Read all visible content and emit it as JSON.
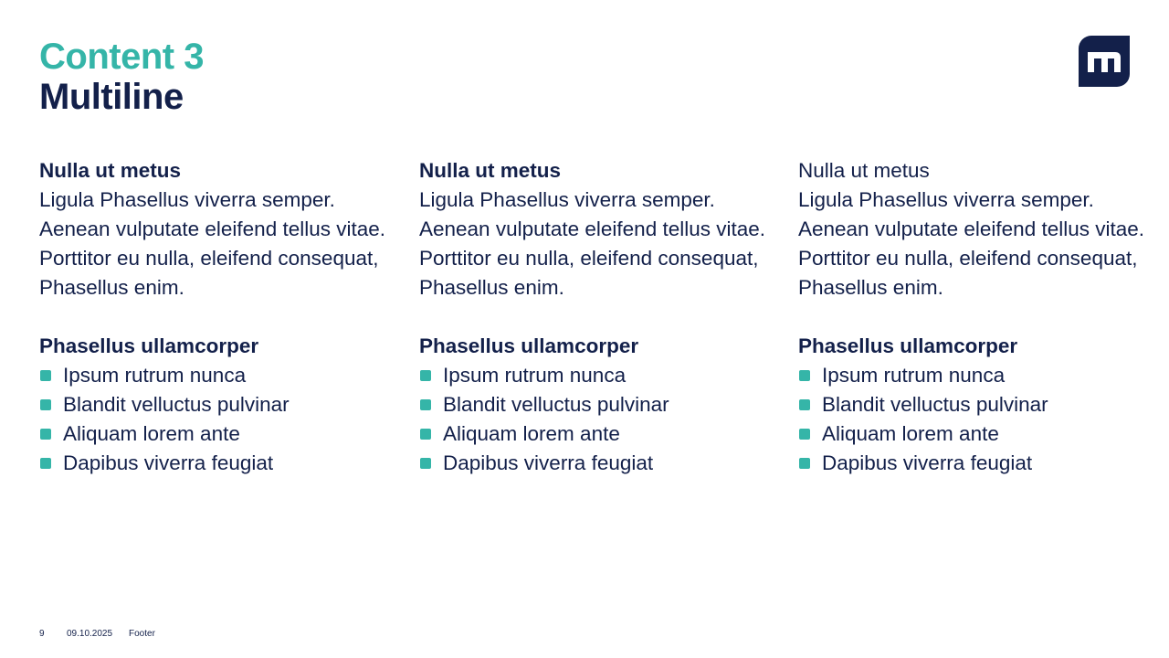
{
  "title": {
    "line1": "Content 3",
    "line2": "Multiline"
  },
  "colors": {
    "accent": "#35b5a8",
    "primary": "#13204a"
  },
  "columns": [
    {
      "heading": "Nulla ut metus",
      "heading_bold": true,
      "body": "Ligula Phasellus viverra semper. Aenean vulputate eleifend tellus vitae. Porttitor eu nulla, eleifend consequat, Phasellus enim.",
      "list_heading": "Phasellus ullamcorper",
      "items": [
        "Ipsum rutrum nunca",
        "Blandit velluctus pulvinar",
        "Aliquam lorem ante",
        "Dapibus viverra feugiat"
      ]
    },
    {
      "heading": "Nulla ut metus",
      "heading_bold": true,
      "body": "Ligula Phasellus viverra semper. Aenean vulputate eleifend tellus vitae. Porttitor eu nulla, eleifend consequat, Phasellus enim.",
      "list_heading": "Phasellus ullamcorper",
      "items": [
        "Ipsum rutrum nunca",
        "Blandit velluctus pulvinar",
        "Aliquam lorem ante",
        "Dapibus viverra feugiat"
      ]
    },
    {
      "heading": "Nulla ut metus",
      "heading_bold": false,
      "body": "Ligula Phasellus viverra semper. Aenean vulputate eleifend tellus vitae. Porttitor eu nulla, eleifend consequat, Phasellus enim.",
      "list_heading": "Phasellus ullamcorper",
      "items": [
        "Ipsum rutrum nunca",
        "Blandit velluctus pulvinar",
        "Aliquam lorem ante",
        "Dapibus viverra feugiat"
      ]
    }
  ],
  "footer": {
    "page": "9",
    "date": "09.10.2025",
    "text": "Footer"
  }
}
